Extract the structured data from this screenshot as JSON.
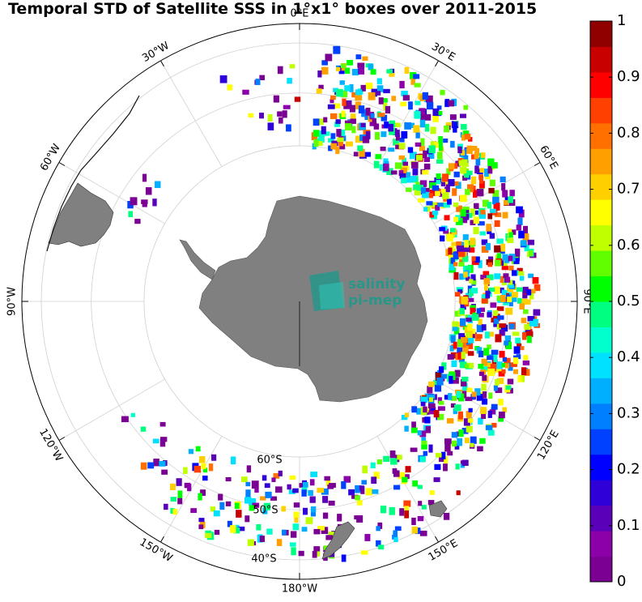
{
  "chart_data": {
    "type": "heatmap",
    "title": "Temporal STD of Satellite SSS in 1°x1° boxes over 2011-2015",
    "projection": "south-polar-stereographic",
    "longitude_labels": [
      "0°E",
      "30°E",
      "60°E",
      "90°E",
      "120°E",
      "150°E",
      "180°W",
      "150°W",
      "120°W",
      "90°W",
      "60°W",
      "30°W"
    ],
    "latitude_labels": [
      "60°S",
      "50°S",
      "40°S"
    ],
    "colorbar": {
      "min": 0,
      "max": 1,
      "ticks": [
        "0",
        "0.1",
        "0.2",
        "0.3",
        "0.4",
        "0.5",
        "0.6",
        "0.7",
        "0.8",
        "0.9",
        "1"
      ],
      "colors": [
        "#7a0094",
        "#8b00a8",
        "#5a00b8",
        "#3000d8",
        "#0000ff",
        "#0040ff",
        "#0080ff",
        "#00b0ff",
        "#00e0ff",
        "#00ffcc",
        "#00ff80",
        "#00ff00",
        "#60ff00",
        "#c0ff00",
        "#ffff00",
        "#ffd000",
        "#ffa000",
        "#ff7000",
        "#ff4000",
        "#ff0000",
        "#c80000",
        "#900000"
      ]
    },
    "land_color": "#808080",
    "grid": true,
    "legend": "right"
  },
  "logo": {
    "line1": "salinity",
    "line2": "pi-mep"
  }
}
